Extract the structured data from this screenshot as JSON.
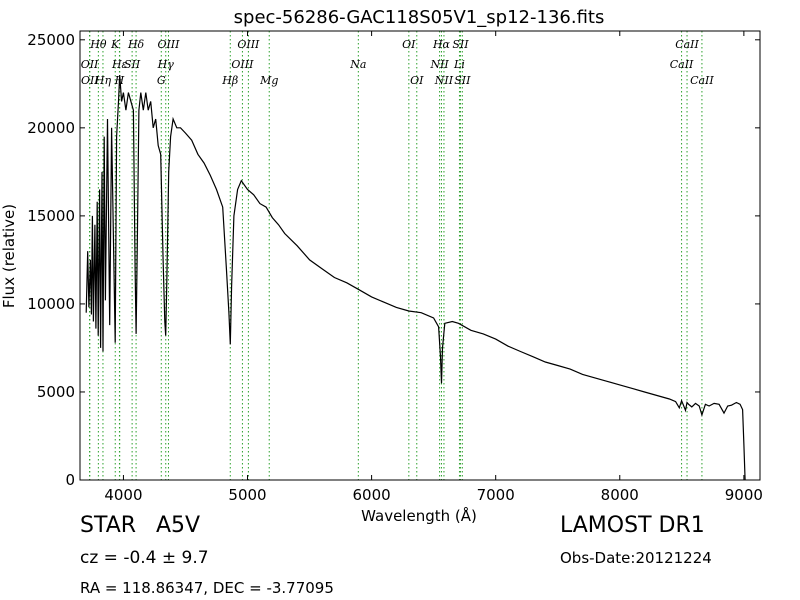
{
  "chart_data": {
    "type": "line",
    "title": "spec-56286-GAC118S05V1_sp12-136.fits",
    "xlabel": "Wavelength (Å)",
    "ylabel": "Flux (relative)",
    "xlim": [
      3650,
      9130
    ],
    "ylim": [
      0,
      25500
    ],
    "xticks": [
      4000,
      5000,
      6000,
      7000,
      8000,
      9000
    ],
    "yticks": [
      0,
      5000,
      10000,
      15000,
      20000,
      25000
    ],
    "grid": false,
    "line_color": "#000000",
    "marker_color": "#2ca02c",
    "spectral_lines": [
      {
        "label": "Hθ",
        "x": 3798,
        "row": 0
      },
      {
        "label": "OII",
        "x": 3727,
        "row": 1
      },
      {
        "label": "OII",
        "x": 3729,
        "row": 2
      },
      {
        "label": "Hη",
        "x": 3835,
        "row": 2
      },
      {
        "label": "Hε",
        "x": 3970,
        "row": 1
      },
      {
        "label": "SII",
        "x": 4070,
        "row": 1
      },
      {
        "label": "K",
        "x": 3934,
        "row": 0
      },
      {
        "label": "H",
        "x": 3968,
        "row": 2
      },
      {
        "label": "Hδ",
        "x": 4102,
        "row": 0
      },
      {
        "label": "OIII",
        "x": 4363,
        "row": 0
      },
      {
        "label": "Hγ",
        "x": 4341,
        "row": 1
      },
      {
        "label": "G",
        "x": 4305,
        "row": 2
      },
      {
        "label": "OIII",
        "x": 5007,
        "row": 0
      },
      {
        "label": "OIII",
        "x": 4959,
        "row": 1
      },
      {
        "label": "Hβ",
        "x": 4861,
        "row": 2
      },
      {
        "label": "Mg",
        "x": 5175,
        "row": 2
      },
      {
        "label": "Na",
        "x": 5893,
        "row": 1
      },
      {
        "label": "OI",
        "x": 6300,
        "row": 0
      },
      {
        "label": "OI",
        "x": 6364,
        "row": 2
      },
      {
        "label": "Hα",
        "x": 6563,
        "row": 0
      },
      {
        "label": "SII",
        "x": 6716,
        "row": 0
      },
      {
        "label": "NII",
        "x": 6548,
        "row": 1
      },
      {
        "label": "Li",
        "x": 6708,
        "row": 1
      },
      {
        "label": "NII",
        "x": 6583,
        "row": 2
      },
      {
        "label": "SII",
        "x": 6731,
        "row": 2
      },
      {
        "label": "CaII",
        "x": 8542,
        "row": 0
      },
      {
        "label": "CaII",
        "x": 8498,
        "row": 1
      },
      {
        "label": "CaII",
        "x": 8662,
        "row": 2
      }
    ],
    "series": [
      {
        "x": [
          3700,
          3712,
          3722,
          3734,
          3742,
          3750,
          3758,
          3770,
          3778,
          3789,
          3797,
          3808,
          3816,
          3827,
          3835,
          3845,
          3855,
          3872,
          3889,
          3905,
          3920,
          3934,
          3945,
          3960,
          3970,
          3985,
          4000,
          4020,
          4040,
          4060,
          4080,
          4094,
          4102,
          4110,
          4125,
          4140,
          4160,
          4180,
          4200,
          4220,
          4240,
          4260,
          4280,
          4300,
          4320,
          4333,
          4341,
          4350,
          4365,
          4380,
          4400,
          4430,
          4460,
          4500,
          4550,
          4600,
          4650,
          4700,
          4750,
          4800,
          4830,
          4850,
          4861,
          4872,
          4890,
          4920,
          4950,
          5000,
          5050,
          5100,
          5150,
          5200,
          5250,
          5300,
          5400,
          5500,
          5600,
          5700,
          5800,
          5900,
          6000,
          6100,
          6200,
          6300,
          6400,
          6500,
          6540,
          6555,
          6563,
          6571,
          6590,
          6650,
          6700,
          6800,
          6900,
          7000,
          7100,
          7200,
          7300,
          7400,
          7500,
          7600,
          7700,
          7800,
          7900,
          8000,
          8100,
          8200,
          8300,
          8400,
          8450,
          8480,
          8498,
          8510,
          8530,
          8542,
          8555,
          8580,
          8610,
          8640,
          8662,
          8690,
          8720,
          8760,
          8800,
          8840,
          8870,
          8900,
          8940,
          8970,
          8990,
          9000,
          9010
        ],
        "y": [
          9500,
          13000,
          9800,
          12500,
          9400,
          15000,
          9000,
          14500,
          8600,
          15800,
          8200,
          16500,
          7500,
          17500,
          7300,
          19500,
          10200,
          20500,
          8800,
          20000,
          13500,
          7800,
          19500,
          21500,
          23000,
          21500,
          22000,
          21000,
          22000,
          21500,
          21000,
          12000,
          8300,
          12500,
          21000,
          22000,
          21000,
          22000,
          21000,
          21500,
          20000,
          20500,
          19000,
          18500,
          12500,
          9000,
          8200,
          11500,
          17500,
          19500,
          20500,
          20000,
          20000,
          19700,
          19300,
          18500,
          18000,
          17300,
          16500,
          15500,
          12000,
          9500,
          7700,
          11000,
          15000,
          16500,
          17000,
          16500,
          16200,
          15700,
          15500,
          14900,
          14500,
          14000,
          13300,
          12500,
          12000,
          11500,
          11200,
          10800,
          10400,
          10100,
          9800,
          9600,
          9500,
          9200,
          8700,
          7000,
          5500,
          7500,
          8900,
          9000,
          8900,
          8500,
          8300,
          8000,
          7600,
          7300,
          7000,
          6700,
          6500,
          6300,
          6000,
          5800,
          5600,
          5400,
          5200,
          5000,
          4800,
          4600,
          4450,
          4100,
          4500,
          4300,
          3950,
          4400,
          4300,
          4150,
          4350,
          4200,
          3700,
          4300,
          4200,
          4350,
          4300,
          3800,
          4200,
          4250,
          4400,
          4300,
          4000,
          2000,
          0
        ]
      }
    ]
  },
  "info": {
    "object_class": "STAR",
    "subclass": "A5V",
    "survey": "LAMOST DR1",
    "redshift": "cz = -0.4 ± 9.7",
    "obs_date": "Obs-Date:20121224",
    "coordinates": "RA = 118.86347, DEC = -3.77095"
  }
}
